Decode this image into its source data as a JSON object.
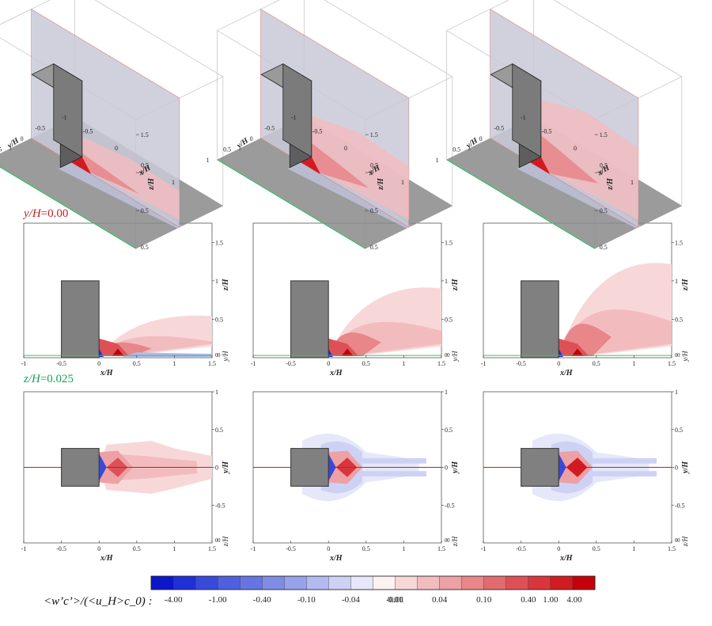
{
  "row_labels": {
    "row2_var": "y/H",
    "row2_val": "=0.00",
    "row3_var": "z/H",
    "row3_val": "=0.025"
  },
  "colorbar": {
    "title": "<w’c’>/(<u_H>c_0) :",
    "tick_labels": [
      "-4.00",
      "-1.00",
      "-0.40",
      "-0.10",
      "-0.04",
      "-0.01",
      "0.01",
      "0.04",
      "0.10",
      "0.40",
      "1.00",
      "4.00"
    ],
    "colors": [
      "#0b17c8",
      "#2030d8",
      "#3949dc",
      "#4f60de",
      "#6675e2",
      "#7f8ce6",
      "#98a2ea",
      "#b3baf0",
      "#cdd2f5",
      "#e6e8fa",
      "#fdf2f2",
      "#f8d7d8",
      "#f2bcbe",
      "#eda1a4",
      "#e8868a",
      "#e26b70",
      "#dd5156",
      "#d8363c",
      "#d11b22",
      "#c40008"
    ]
  },
  "axes_text": {
    "x_label": "x/H",
    "z_label": "z/H",
    "y_label": "y/H"
  },
  "chart_data": [
    {
      "type": "heatmap",
      "panel": "3D view",
      "count": 3,
      "x_ticks": [
        "-0.5",
        "0",
        "0.5",
        "1"
      ],
      "y_ticks": [
        "1",
        "0.5",
        "0",
        "-0.5",
        "-1"
      ],
      "z_ticks": [
        "0.5",
        "1",
        "1.5"
      ],
      "xlabel": "x/H",
      "ylabel": "y/H",
      "zlabel": "z/H"
    },
    {
      "type": "heatmap",
      "panel": "vertical plane y/H=0.00",
      "count": 3,
      "xlim": [
        -1,
        1.5
      ],
      "zlim": [
        0,
        1.75
      ],
      "x_ticks": [
        "-1",
        "-0.5",
        "0",
        "0.5",
        "1",
        "1.5"
      ],
      "z_ticks": [
        "0.5",
        "1",
        "1.5"
      ],
      "right_bottom_ticks": [
        "0",
        "0"
      ],
      "xlabel": "x/H",
      "zlabel": "z/H",
      "ylabel": "y/H"
    },
    {
      "type": "heatmap",
      "panel": "horizontal plane z/H=0.025",
      "count": 3,
      "xlim": [
        -1,
        1.5
      ],
      "ylim": [
        -1,
        1
      ],
      "x_ticks": [
        "-1",
        "-0.5",
        "0",
        "0.5",
        "1",
        "1.5"
      ],
      "y_ticks": [
        "-0.5",
        "0",
        "0.5",
        "1"
      ],
      "right_bottom_ticks": [
        "0",
        "0"
      ],
      "xlabel": "x/H",
      "ylabel": "y/H",
      "zlabel": "z/H"
    }
  ]
}
